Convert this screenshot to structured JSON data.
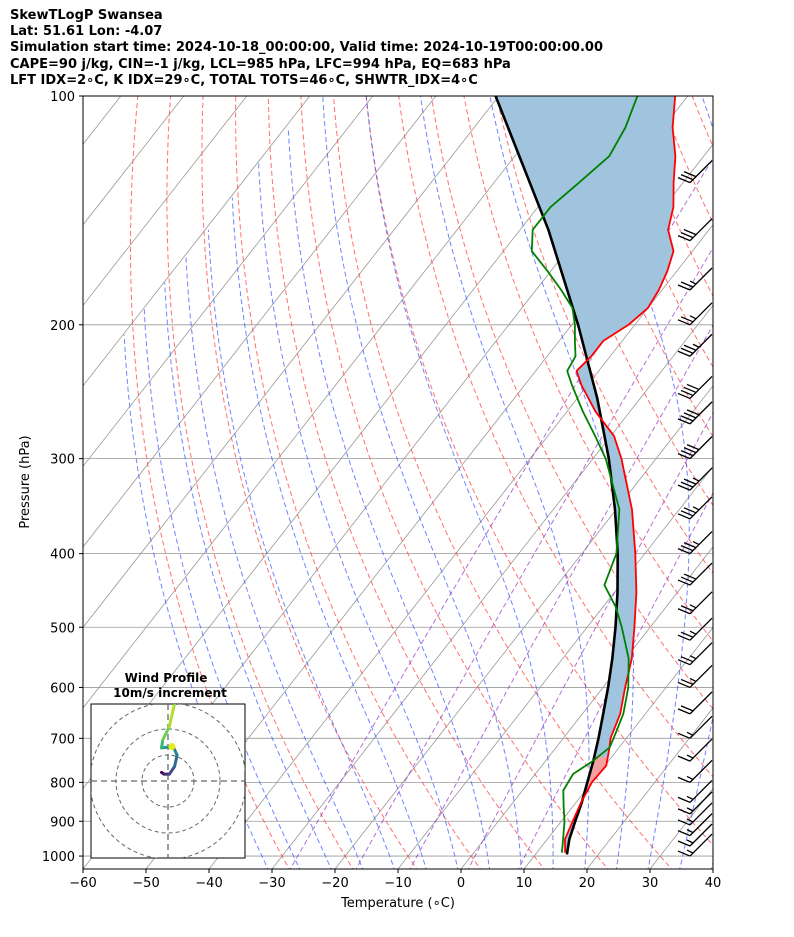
{
  "header": {
    "line1": "SkewTLogP Swansea",
    "line2": "Lat: 51.61   Lon: -4.07",
    "line3": "Simulation start time: 2024-10-18_00:00:00, Valid time: 2024-10-19T00:00:00.00",
    "line4": "CAPE=90 j/kg, CIN=-1 j/kg, LCL=985 hPa, LFC=994 hPa, EQ=683 hPa",
    "line5": "LFT IDX=2∘C, K IDX=29∘C, TOTAL TOTS=46∘C, SHWTR_IDX=4∘C"
  },
  "colors": {
    "temperature": "#ff0000",
    "dewpoint": "#008000",
    "parcel": "#000000",
    "cape_fill": "#a0c4de",
    "cin_fill": "#f4a0a0",
    "dry_adiabat": "#ff4040",
    "moist_adiabat": "#3050ff",
    "mixing_ratio": "#9030c0",
    "isotherm": "#999999",
    "isobar": "#999999"
  },
  "chart_data": [
    {
      "type": "line",
      "kind": "skew-T log-P",
      "xlabel": "Temperature (∘C)",
      "ylabel": "Pressure (hPa)",
      "xlim": [
        -60,
        40
      ],
      "ylim": [
        1040,
        100
      ],
      "y_scale": "log",
      "x_ticks": [
        -60,
        -50,
        -40,
        -30,
        -20,
        -10,
        0,
        10,
        20,
        30,
        40
      ],
      "x_tick_labels": [
        "−60",
        "−50",
        "−40",
        "−30",
        "−20",
        "−10",
        "0",
        "10",
        "20",
        "30",
        "40"
      ],
      "y_ticks": [
        100,
        200,
        300,
        400,
        500,
        600,
        700,
        800,
        900,
        1000
      ],
      "y_tick_labels": [
        "100",
        "200",
        "300",
        "400",
        "500",
        "600",
        "700",
        "800",
        "900",
        "1000"
      ],
      "grid": true,
      "series": [
        {
          "role": "temperature",
          "points": [
            [
              990,
              14.5
            ],
            [
              950,
              12.8
            ],
            [
              900,
              11.8
            ],
            [
              850,
              10.8
            ],
            [
              800,
              10.0
            ],
            [
              760,
              10.2
            ],
            [
              720,
              8.5
            ],
            [
              700,
              7.5
            ],
            [
              650,
              6.0
            ],
            [
              600,
              3.5
            ],
            [
              550,
              1.0
            ],
            [
              500,
              -2.5
            ],
            [
              450,
              -6.5
            ],
            [
              400,
              -11.5
            ],
            [
              350,
              -17.5
            ],
            [
              300,
              -25.5
            ],
            [
              280,
              -29.5
            ],
            [
              260,
              -35.5
            ],
            [
              240,
              -41.0
            ],
            [
              230,
              -43.5
            ],
            [
              220,
              -43.0
            ],
            [
              210,
              -43.0
            ],
            [
              200,
              -41.0
            ],
            [
              190,
              -40.0
            ],
            [
              180,
              -40.5
            ],
            [
              170,
              -41.5
            ],
            [
              160,
              -43.0
            ],
            [
              150,
              -46.5
            ],
            [
              140,
              -48.5
            ],
            [
              130,
              -51.5
            ],
            [
              120,
              -54.5
            ],
            [
              110,
              -58.5
            ],
            [
              100,
              -62.0
            ]
          ]
        },
        {
          "role": "dewpoint",
          "points": [
            [
              990,
              14.0
            ],
            [
              950,
              12.5
            ],
            [
              900,
              10.5
            ],
            [
              860,
              8.5
            ],
            [
              820,
              6.5
            ],
            [
              780,
              6.0
            ],
            [
              750,
              7.5
            ],
            [
              720,
              8.5
            ],
            [
              700,
              8.0
            ],
            [
              650,
              6.5
            ],
            [
              600,
              4.0
            ],
            [
              550,
              0.5
            ],
            [
              500,
              -4.5
            ],
            [
              470,
              -8.0
            ],
            [
              440,
              -12.5
            ],
            [
              400,
              -14.5
            ],
            [
              350,
              -19.5
            ],
            [
              300,
              -28.0
            ],
            [
              280,
              -32.5
            ],
            [
              260,
              -37.5
            ],
            [
              240,
              -42.5
            ],
            [
              230,
              -45.0
            ],
            [
              220,
              -45.5
            ],
            [
              210,
              -47.5
            ],
            [
              200,
              -49.5
            ],
            [
              190,
              -52.0
            ],
            [
              180,
              -56.0
            ],
            [
              170,
              -60.5
            ],
            [
              160,
              -65.5
            ],
            [
              150,
              -68.0
            ],
            [
              140,
              -68.0
            ],
            [
              130,
              -66.5
            ],
            [
              120,
              -65.0
            ],
            [
              110,
              -66.0
            ],
            [
              100,
              -68.0
            ]
          ]
        },
        {
          "role": "parcel",
          "points": [
            [
              995,
              15.0
            ],
            [
              950,
              13.5
            ],
            [
              900,
              12.2
            ],
            [
              850,
              10.9
            ],
            [
              800,
              9.3
            ],
            [
              750,
              7.6
            ],
            [
              700,
              5.6
            ],
            [
              650,
              3.3
            ],
            [
              600,
              0.8
            ],
            [
              550,
              -2.1
            ],
            [
              500,
              -5.5
            ],
            [
              450,
              -9.5
            ],
            [
              400,
              -14.3
            ],
            [
              350,
              -20.2
            ],
            [
              300,
              -27.5
            ],
            [
              250,
              -36.8
            ],
            [
              200,
              -49.0
            ],
            [
              150,
              -65.5
            ],
            [
              100,
              -90.5
            ]
          ]
        }
      ],
      "wind_barbs": {
        "description": "wind barbs at right edge",
        "levels_hpa": [
          130,
          155,
          180,
          200,
          220,
          250,
          270,
          300,
          330,
          360,
          400,
          440,
          480,
          520,
          560,
          600,
          650,
          700,
          750,
          800,
          850,
          880,
          910,
          940,
          970,
          1000
        ],
        "speed_kt": [
          30,
          30,
          25,
          25,
          35,
          40,
          40,
          40,
          35,
          35,
          35,
          30,
          25,
          25,
          25,
          25,
          20,
          15,
          15,
          15,
          15,
          15,
          15,
          15,
          15,
          15
        ]
      }
    },
    {
      "type": "line",
      "kind": "hodograph",
      "title": "Wind Profile",
      "subtitle": "10m/s increment",
      "ring_spacing_ms": 10,
      "rings": 3,
      "points_uv": [
        [
          -2.5,
          1.5
        ],
        [
          -1.5,
          1.2
        ],
        [
          0.5,
          1.2
        ],
        [
          2.5,
          2.5
        ],
        [
          3.5,
          4.5
        ],
        [
          2.0,
          6.0
        ],
        [
          -2.5,
          5.8
        ],
        [
          -2.0,
          7.2
        ],
        [
          0.5,
          9.5
        ],
        [
          1.5,
          11.5
        ],
        [
          2.5,
          13.5
        ],
        [
          4.0,
          15.5
        ]
      ],
      "highlight_point_uv": [
        1.5,
        6.0
      ]
    }
  ]
}
